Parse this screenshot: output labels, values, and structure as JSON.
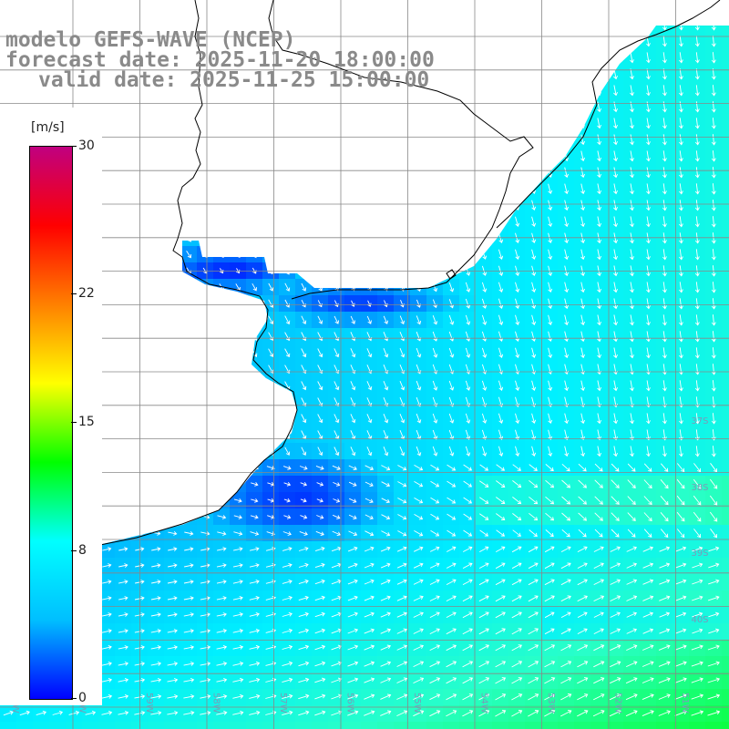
{
  "title": {
    "line1": "modelo GEFS-WAVE (NCEP)",
    "line2": "forecast date: 2025-11-20 18:00:00",
    "line3": "valid date: 2025-11-25 15:00:00"
  },
  "colorbar": {
    "unit": "[m/s]",
    "ticks": [
      "30",
      "22",
      "15",
      "8",
      "0"
    ],
    "tick_values": [
      30,
      22,
      15,
      8,
      0
    ],
    "range": [
      0,
      30
    ],
    "colors": [
      "#0000ff",
      "#00bfff",
      "#00ffff",
      "#00ff00",
      "#ffff00",
      "#ff8000",
      "#ff0000",
      "#c00080"
    ]
  },
  "map": {
    "variable": "wind speed and direction",
    "land_color": "#ffffff",
    "coast_color": "#000000",
    "grid_color": "#808080",
    "lat_labels": [
      "37S",
      "38S",
      "39S",
      "40S"
    ],
    "lon_labels": [
      "61W",
      "60W",
      "59W",
      "58W",
      "57W",
      "56W",
      "55W",
      "54W",
      "53W",
      "52W",
      "51W"
    ]
  }
}
